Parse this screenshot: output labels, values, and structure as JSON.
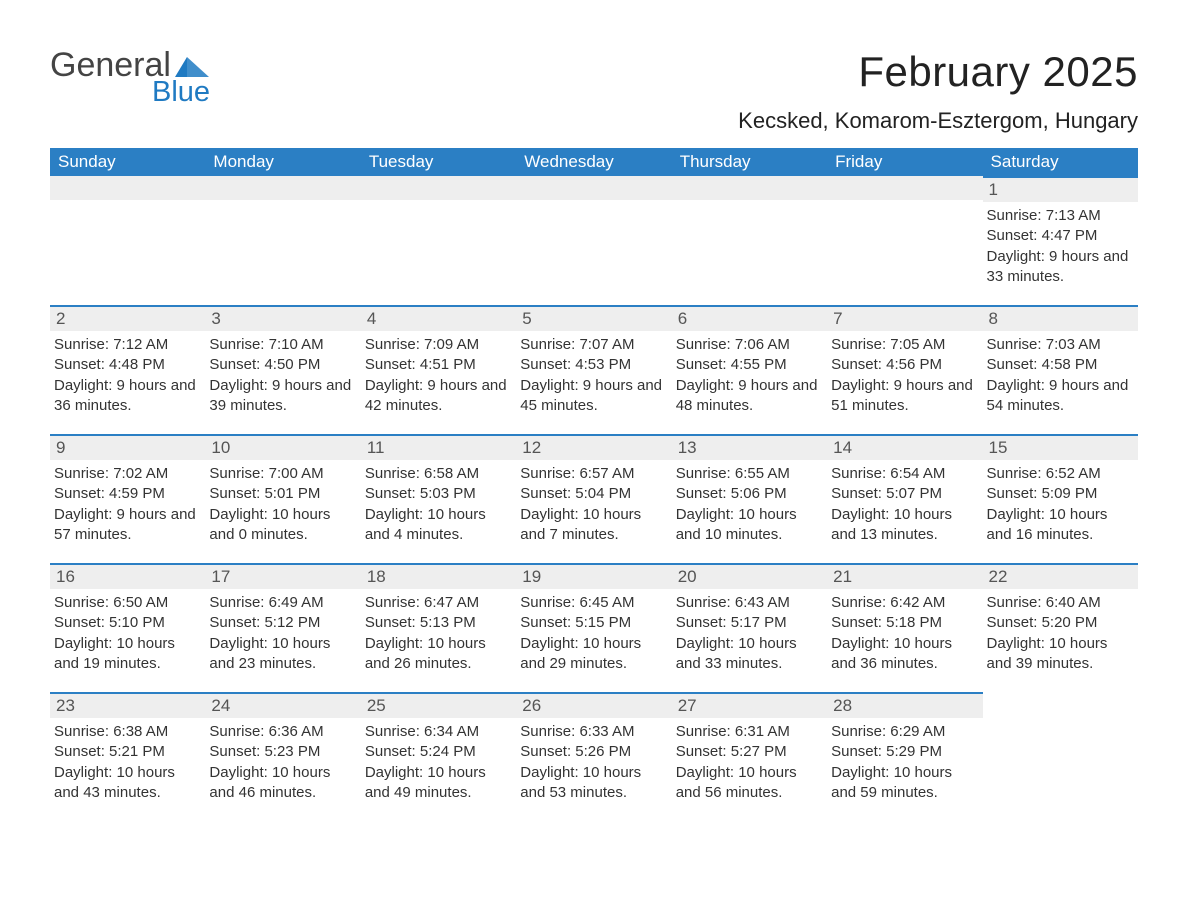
{
  "brand": {
    "line1": "General",
    "line2": "Blue",
    "logo_color": "#1f7ac2"
  },
  "title": "February 2025",
  "location": "Kecsked, Komarom-Esztergom, Hungary",
  "weekday_headers": [
    "Sunday",
    "Monday",
    "Tuesday",
    "Wednesday",
    "Thursday",
    "Friday",
    "Saturday"
  ],
  "colors": {
    "header_blue": "#2b7fc4",
    "daynum_bg": "#eeeeee",
    "text": "#333333",
    "background": "#ffffff"
  },
  "first_weekday_index": 6,
  "days": [
    {
      "n": 1,
      "sunrise": "7:13 AM",
      "sunset": "4:47 PM",
      "daylight": "9 hours and 33 minutes."
    },
    {
      "n": 2,
      "sunrise": "7:12 AM",
      "sunset": "4:48 PM",
      "daylight": "9 hours and 36 minutes."
    },
    {
      "n": 3,
      "sunrise": "7:10 AM",
      "sunset": "4:50 PM",
      "daylight": "9 hours and 39 minutes."
    },
    {
      "n": 4,
      "sunrise": "7:09 AM",
      "sunset": "4:51 PM",
      "daylight": "9 hours and 42 minutes."
    },
    {
      "n": 5,
      "sunrise": "7:07 AM",
      "sunset": "4:53 PM",
      "daylight": "9 hours and 45 minutes."
    },
    {
      "n": 6,
      "sunrise": "7:06 AM",
      "sunset": "4:55 PM",
      "daylight": "9 hours and 48 minutes."
    },
    {
      "n": 7,
      "sunrise": "7:05 AM",
      "sunset": "4:56 PM",
      "daylight": "9 hours and 51 minutes."
    },
    {
      "n": 8,
      "sunrise": "7:03 AM",
      "sunset": "4:58 PM",
      "daylight": "9 hours and 54 minutes."
    },
    {
      "n": 9,
      "sunrise": "7:02 AM",
      "sunset": "4:59 PM",
      "daylight": "9 hours and 57 minutes."
    },
    {
      "n": 10,
      "sunrise": "7:00 AM",
      "sunset": "5:01 PM",
      "daylight": "10 hours and 0 minutes."
    },
    {
      "n": 11,
      "sunrise": "6:58 AM",
      "sunset": "5:03 PM",
      "daylight": "10 hours and 4 minutes."
    },
    {
      "n": 12,
      "sunrise": "6:57 AM",
      "sunset": "5:04 PM",
      "daylight": "10 hours and 7 minutes."
    },
    {
      "n": 13,
      "sunrise": "6:55 AM",
      "sunset": "5:06 PM",
      "daylight": "10 hours and 10 minutes."
    },
    {
      "n": 14,
      "sunrise": "6:54 AM",
      "sunset": "5:07 PM",
      "daylight": "10 hours and 13 minutes."
    },
    {
      "n": 15,
      "sunrise": "6:52 AM",
      "sunset": "5:09 PM",
      "daylight": "10 hours and 16 minutes."
    },
    {
      "n": 16,
      "sunrise": "6:50 AM",
      "sunset": "5:10 PM",
      "daylight": "10 hours and 19 minutes."
    },
    {
      "n": 17,
      "sunrise": "6:49 AM",
      "sunset": "5:12 PM",
      "daylight": "10 hours and 23 minutes."
    },
    {
      "n": 18,
      "sunrise": "6:47 AM",
      "sunset": "5:13 PM",
      "daylight": "10 hours and 26 minutes."
    },
    {
      "n": 19,
      "sunrise": "6:45 AM",
      "sunset": "5:15 PM",
      "daylight": "10 hours and 29 minutes."
    },
    {
      "n": 20,
      "sunrise": "6:43 AM",
      "sunset": "5:17 PM",
      "daylight": "10 hours and 33 minutes."
    },
    {
      "n": 21,
      "sunrise": "6:42 AM",
      "sunset": "5:18 PM",
      "daylight": "10 hours and 36 minutes."
    },
    {
      "n": 22,
      "sunrise": "6:40 AM",
      "sunset": "5:20 PM",
      "daylight": "10 hours and 39 minutes."
    },
    {
      "n": 23,
      "sunrise": "6:38 AM",
      "sunset": "5:21 PM",
      "daylight": "10 hours and 43 minutes."
    },
    {
      "n": 24,
      "sunrise": "6:36 AM",
      "sunset": "5:23 PM",
      "daylight": "10 hours and 46 minutes."
    },
    {
      "n": 25,
      "sunrise": "6:34 AM",
      "sunset": "5:24 PM",
      "daylight": "10 hours and 49 minutes."
    },
    {
      "n": 26,
      "sunrise": "6:33 AM",
      "sunset": "5:26 PM",
      "daylight": "10 hours and 53 minutes."
    },
    {
      "n": 27,
      "sunrise": "6:31 AM",
      "sunset": "5:27 PM",
      "daylight": "10 hours and 56 minutes."
    },
    {
      "n": 28,
      "sunrise": "6:29 AM",
      "sunset": "5:29 PM",
      "daylight": "10 hours and 59 minutes."
    }
  ],
  "labels": {
    "sunrise": "Sunrise: ",
    "sunset": "Sunset: ",
    "daylight": "Daylight: "
  }
}
